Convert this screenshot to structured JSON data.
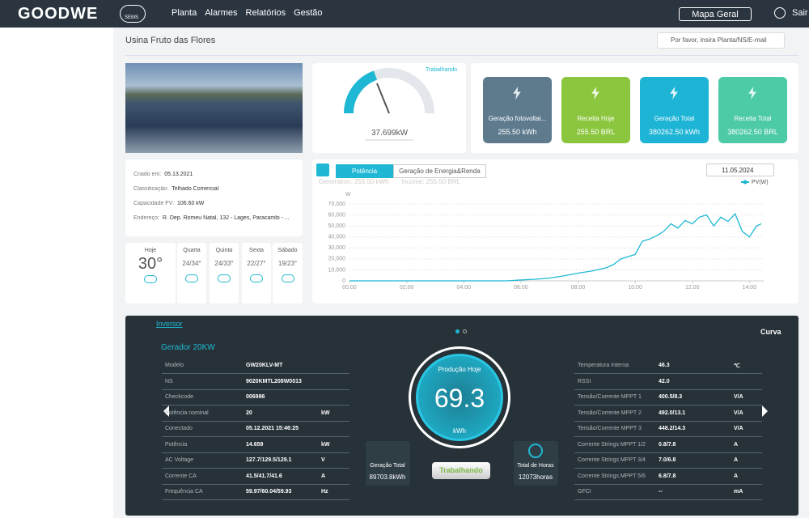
{
  "header": {
    "logo": "GOODWE",
    "cloud": "SEMS",
    "nav": [
      "Planta",
      "Alarmes",
      "Relatórios",
      "Gestão"
    ],
    "map_button": "Mapa Geral",
    "logout": "Sair"
  },
  "plant_title": "Usina Fruto das Flores",
  "search_placeholder": "Por favor, insira Planta/NS/E-mail",
  "gauge": {
    "status": "Trabalhando",
    "value": "37.699kW"
  },
  "cards": [
    {
      "label": "Geração fotovoltai...",
      "value": "255.50 kWh",
      "color": "#5e7b8e"
    },
    {
      "label": "Receita Hoje",
      "value": "255.50 BRL",
      "color": "#8cc63f"
    },
    {
      "label": "Geração Total",
      "value": "380262.50 kWh",
      "color": "#1db4d6"
    },
    {
      "label": "Receita Total",
      "value": "380262.50 BRL",
      "color": "#4dcaa6"
    }
  ],
  "info": [
    {
      "label": "Criado em:",
      "value": "05.13.2021"
    },
    {
      "label": "Classificação:",
      "value": "Telhado Comercial"
    },
    {
      "label": "Capacidade FV:",
      "value": "106.60 kW"
    },
    {
      "label": "Endereço:",
      "value": "R. Dep. Romeu Natal, 132 - Lages, Paracambi - ..."
    }
  ],
  "weather": [
    {
      "day": "Hoje",
      "temp": "30°"
    },
    {
      "day": "Quarta",
      "temp": "24/34°"
    },
    {
      "day": "Quinta",
      "temp": "24/33°"
    },
    {
      "day": "Sexta",
      "temp": "22/27°"
    },
    {
      "day": "Sábado",
      "temp": "19/23°"
    }
  ],
  "chart_panel": {
    "tabs": [
      "Potência",
      "Geração de Energia&Renda"
    ],
    "date": "11.05.2024",
    "generation": "Generation: 255.50 kWh",
    "income": "Income: 255.50 BRL"
  },
  "chart_data": {
    "type": "line",
    "y_label": "W",
    "x": [
      "00:00",
      "05:30",
      "06:00",
      "06:30",
      "07:00",
      "07:30",
      "08:00",
      "08:30",
      "09:00",
      "09:15",
      "09:30",
      "09:45",
      "10:00",
      "10:15",
      "10:30",
      "10:45",
      "11:00",
      "11:15",
      "11:30",
      "11:45",
      "12:00",
      "12:15",
      "12:30",
      "12:45",
      "13:00",
      "13:15",
      "13:30",
      "13:45",
      "14:00",
      "14:15",
      "14:25"
    ],
    "series": [
      {
        "name": "PV(W)",
        "color": "#1fb8d4",
        "values": [
          0,
          0,
          800,
          1500,
          2500,
          4500,
          7000,
          9000,
          12000,
          15000,
          20000,
          22000,
          24000,
          36000,
          38000,
          41000,
          45000,
          52000,
          48000,
          55000,
          52000,
          58000,
          60000,
          50000,
          58000,
          54000,
          61000,
          45000,
          40000,
          50000,
          52000
        ]
      }
    ],
    "xlim": [
      "00:00",
      "14:30"
    ],
    "xticks": [
      "00:00",
      "02:00",
      "04:00",
      "06:00",
      "08:00",
      "10:00",
      "12:00",
      "14:00"
    ],
    "ylim": [
      0,
      70000
    ],
    "yticks": [
      0,
      {
        "value": 10000,
        "label": "10,000"
      },
      {
        "value": 20000,
        "label": "20,000"
      },
      {
        "value": 30000,
        "label": "30,000"
      },
      {
        "value": 40000,
        "label": "40,000"
      },
      {
        "value": 50000,
        "label": "50,000"
      },
      {
        "value": 60000,
        "label": "60,000"
      },
      {
        "value": 70000,
        "label": "70,000"
      }
    ],
    "grid": true,
    "legend": "top-right"
  },
  "inverter": {
    "link": "Inversor",
    "name": "Gerador 20KW",
    "curve": "Curva",
    "left": [
      {
        "label": "Modelo",
        "value": "GW20KLV-MT"
      },
      {
        "label": "NS",
        "value": "9020KMTL208W0013"
      },
      {
        "label": "Checkcode",
        "value": "006986"
      },
      {
        "label": "Potência nominal",
        "value": "20",
        "unit": "kW"
      },
      {
        "label": "Conectado",
        "value": "05.12.2021 15:46:25"
      },
      {
        "label": "Potência",
        "value": "14.659",
        "unit": "kW"
      },
      {
        "label": "AC Voltage",
        "value": "127.7/129.5/129.1",
        "unit": "V"
      },
      {
        "label": "Corrente CA",
        "value": "41.5/41.7/41.6",
        "unit": "A"
      },
      {
        "label": "Frequência CA",
        "value": "59.97/60.04/59.93",
        "unit": "Hz"
      }
    ],
    "right": [
      {
        "label": "Temperatura Interna",
        "value": "46.3",
        "unit": "℃"
      },
      {
        "label": "RSSI",
        "value": "42.0"
      },
      {
        "label": "Tensão/Corrente MPPT 1",
        "value": "400.5/8.3",
        "unit": "V/A"
      },
      {
        "label": "Tensão/Corrente MPPT 2",
        "value": "492.0/13.1",
        "unit": "V/A"
      },
      {
        "label": "Tensão/Corrente MPPT 3",
        "value": "448.2/14.3",
        "unit": "V/A"
      },
      {
        "label": "Corrente Strings MPPT 1/2",
        "value": "0.8/7.8",
        "unit": "A"
      },
      {
        "label": "Corrente Strings MPPT 3/4",
        "value": "7.0/6.8",
        "unit": "A"
      },
      {
        "label": "Corrente Strings MPPT 5/6",
        "value": "6.8/7.8",
        "unit": "A"
      },
      {
        "label": "GFCI",
        "value": "--",
        "unit": "mA"
      }
    ],
    "today_label": "Produção Hoje",
    "today_value": "69.3",
    "today_unit": "kWh",
    "status": "Trabalhando",
    "total_label": "Geração Total",
    "total_value": "89703.8kWh",
    "hours_label": "Total de Horas",
    "hours_value": "12073horas"
  }
}
